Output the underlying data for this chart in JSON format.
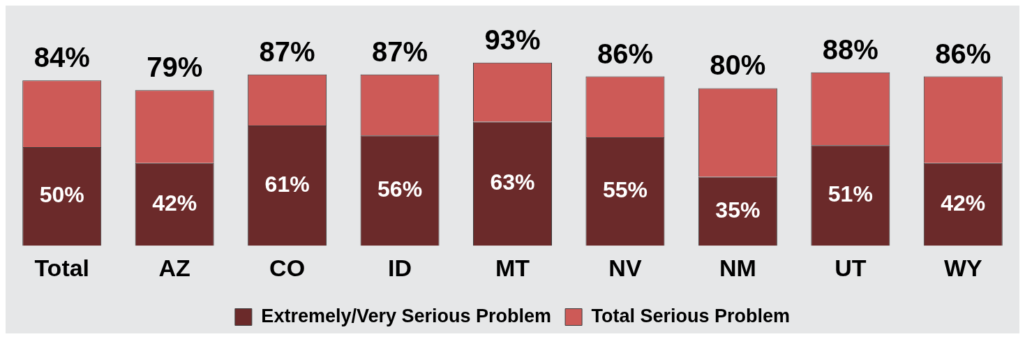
{
  "chart_data": {
    "type": "bar",
    "stacked": true,
    "categories": [
      "Total",
      "AZ",
      "CO",
      "ID",
      "MT",
      "NV",
      "NM",
      "UT",
      "WY"
    ],
    "series": [
      {
        "name": "Extremely/Very Serious Problem",
        "color": "#6b2a2a",
        "values": [
          50,
          42,
          61,
          56,
          63,
          55,
          35,
          51,
          42
        ],
        "value_labels": [
          "50%",
          "42%",
          "61%",
          "56%",
          "63%",
          "55%",
          "35%",
          "51%",
          "42%"
        ]
      },
      {
        "name": "Total Serious Problem",
        "color": "#cd5a57",
        "values": [
          34,
          37,
          26,
          31,
          30,
          31,
          45,
          37,
          44
        ]
      }
    ],
    "totals": [
      "84%",
      "79%",
      "87%",
      "87%",
      "93%",
      "86%",
      "80%",
      "88%",
      "86%"
    ],
    "legend": "bottom"
  }
}
